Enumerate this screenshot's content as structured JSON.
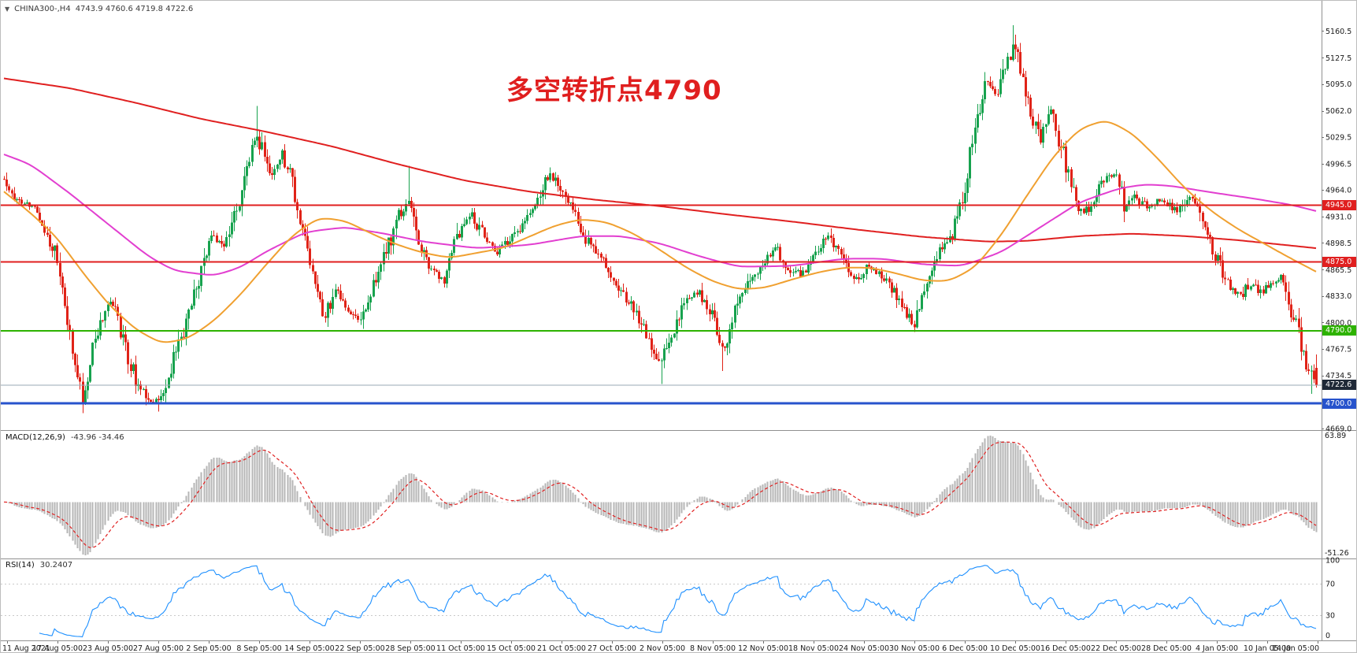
{
  "header": {
    "dropdown_glyph": "▼",
    "symbol": "CHINA300-,H4",
    "ohlc": "4743.9 4760.6 4719.8 4722.6"
  },
  "annotation": {
    "text": "多空转折点4790",
    "color": "#e01f1f"
  },
  "price_axis": {
    "ticks": [
      "5160.5",
      "5127.5",
      "5095.0",
      "5062.0",
      "5029.5",
      "4996.5",
      "4964.0",
      "4931.0",
      "4898.5",
      "4865.5",
      "4833.0",
      "4800.0",
      "4767.5",
      "4734.5",
      "4669.0"
    ]
  },
  "time_axis": {
    "labels": [
      "11 Aug 2021",
      "17 Aug 05:00",
      "23 Aug 05:00",
      "27 Aug 05:00",
      "2 Sep 05:00",
      "8 Sep 05:00",
      "14 Sep 05:00",
      "22 Sep 05:00",
      "28 Sep 05:00",
      "11 Oct 05:00",
      "15 Oct 05:00",
      "21 Oct 05:00",
      "27 Oct 05:00",
      "2 Nov 05:00",
      "8 Nov 05:00",
      "12 Nov 05:00",
      "18 Nov 05:00",
      "24 Nov 05:00",
      "30 Nov 05:00",
      "6 Dec 05:00",
      "10 Dec 05:00",
      "16 Dec 05:00",
      "22 Dec 05:00",
      "28 Dec 05:00",
      "4 Jan 05:00",
      "10 Jan 05:00",
      "14 Jan 05:00"
    ]
  },
  "current_price": {
    "value": 4722.6,
    "label": "4722.6",
    "line_color": "#9aa8b6",
    "badge_color": "#1f2937"
  },
  "macd_panel": {
    "name": "MACD(12,26,9)",
    "values_text": "-43.96 -34.46",
    "axis_max": "63.89",
    "axis_min": "-51.26",
    "signal_color": "#e02020"
  },
  "rsi_panel": {
    "name": "RSI(14)",
    "value_text": "30.2407",
    "levels": [
      "100",
      "70",
      "30",
      "0"
    ],
    "level_lines": [
      70,
      30
    ],
    "line_color": "#1e90ff"
  },
  "colors": {
    "bull": "#17a24e",
    "bear": "#e02318",
    "axis_text": "#1a1a1a",
    "separator": "#909090",
    "histogram": "#b6b6b6",
    "level_dash": "#c9c9c9"
  },
  "chart_data": {
    "type": "candlestick",
    "symbol": "CHINA300-",
    "timeframe": "H4",
    "title_annotation": "多空转折点4790",
    "ohlc_current": {
      "open": 4743.9,
      "high": 4760.6,
      "low": 4719.8,
      "close": 4722.6
    },
    "ylim": [
      4667,
      5198
    ],
    "x_range": [
      "11 Aug 2021",
      "14 Jan 05:00"
    ],
    "candles_count": 520,
    "price_path": [
      [
        0.0,
        4978
      ],
      [
        0.008,
        4952
      ],
      [
        0.018,
        4948
      ],
      [
        0.028,
        4930
      ],
      [
        0.04,
        4880
      ],
      [
        0.048,
        4800
      ],
      [
        0.056,
        4730
      ],
      [
        0.06,
        4700
      ],
      [
        0.066,
        4760
      ],
      [
        0.074,
        4806
      ],
      [
        0.082,
        4828
      ],
      [
        0.09,
        4780
      ],
      [
        0.1,
        4730
      ],
      [
        0.11,
        4706
      ],
      [
        0.118,
        4700
      ],
      [
        0.126,
        4740
      ],
      [
        0.136,
        4788
      ],
      [
        0.148,
        4852
      ],
      [
        0.158,
        4908
      ],
      [
        0.168,
        4890
      ],
      [
        0.178,
        4945
      ],
      [
        0.186,
        4995
      ],
      [
        0.192,
        5040
      ],
      [
        0.198,
        5005
      ],
      [
        0.205,
        4982
      ],
      [
        0.212,
        5012
      ],
      [
        0.22,
        4970
      ],
      [
        0.228,
        4905
      ],
      [
        0.236,
        4852
      ],
      [
        0.244,
        4808
      ],
      [
        0.252,
        4840
      ],
      [
        0.26,
        4822
      ],
      [
        0.27,
        4800
      ],
      [
        0.28,
        4838
      ],
      [
        0.29,
        4882
      ],
      [
        0.3,
        4930
      ],
      [
        0.308,
        4948
      ],
      [
        0.316,
        4900
      ],
      [
        0.326,
        4862
      ],
      [
        0.336,
        4852
      ],
      [
        0.346,
        4912
      ],
      [
        0.356,
        4934
      ],
      [
        0.366,
        4905
      ],
      [
        0.376,
        4888
      ],
      [
        0.386,
        4902
      ],
      [
        0.396,
        4926
      ],
      [
        0.406,
        4946
      ],
      [
        0.416,
        4986
      ],
      [
        0.424,
        4968
      ],
      [
        0.434,
        4940
      ],
      [
        0.444,
        4902
      ],
      [
        0.454,
        4880
      ],
      [
        0.462,
        4862
      ],
      [
        0.472,
        4836
      ],
      [
        0.482,
        4808
      ],
      [
        0.492,
        4775
      ],
      [
        0.5,
        4750
      ],
      [
        0.51,
        4792
      ],
      [
        0.52,
        4830
      ],
      [
        0.53,
        4838
      ],
      [
        0.54,
        4806
      ],
      [
        0.548,
        4766
      ],
      [
        0.558,
        4816
      ],
      [
        0.568,
        4850
      ],
      [
        0.578,
        4870
      ],
      [
        0.588,
        4892
      ],
      [
        0.598,
        4868
      ],
      [
        0.608,
        4858
      ],
      [
        0.618,
        4886
      ],
      [
        0.628,
        4906
      ],
      [
        0.638,
        4880
      ],
      [
        0.648,
        4852
      ],
      [
        0.658,
        4868
      ],
      [
        0.668,
        4858
      ],
      [
        0.678,
        4838
      ],
      [
        0.688,
        4808
      ],
      [
        0.694,
        4798
      ],
      [
        0.702,
        4852
      ],
      [
        0.712,
        4886
      ],
      [
        0.722,
        4906
      ],
      [
        0.731,
        4958
      ],
      [
        0.74,
        5045
      ],
      [
        0.748,
        5098
      ],
      [
        0.756,
        5076
      ],
      [
        0.762,
        5108
      ],
      [
        0.769,
        5148
      ],
      [
        0.776,
        5105
      ],
      [
        0.782,
        5062
      ],
      [
        0.79,
        5030
      ],
      [
        0.798,
        5058
      ],
      [
        0.806,
        5015
      ],
      [
        0.814,
        4968
      ],
      [
        0.822,
        4932
      ],
      [
        0.83,
        4950
      ],
      [
        0.838,
        4975
      ],
      [
        0.846,
        4988
      ],
      [
        0.854,
        4945
      ],
      [
        0.862,
        4958
      ],
      [
        0.87,
        4942
      ],
      [
        0.878,
        4952
      ],
      [
        0.886,
        4948
      ],
      [
        0.894,
        4938
      ],
      [
        0.902,
        4955
      ],
      [
        0.91,
        4942
      ],
      [
        0.918,
        4905
      ],
      [
        0.926,
        4872
      ],
      [
        0.934,
        4845
      ],
      [
        0.942,
        4832
      ],
      [
        0.95,
        4852
      ],
      [
        0.958,
        4838
      ],
      [
        0.966,
        4848
      ],
      [
        0.974,
        4856
      ],
      [
        0.98,
        4820
      ],
      [
        0.986,
        4788
      ],
      [
        0.992,
        4752
      ],
      [
        1.0,
        4723
      ]
    ],
    "spikes": [
      {
        "f": 0.06,
        "type": "low",
        "price": 4688
      },
      {
        "f": 0.118,
        "type": "low",
        "price": 4690
      },
      {
        "f": 0.192,
        "type": "high",
        "price": 5068
      },
      {
        "f": 0.308,
        "type": "high",
        "price": 4994
      },
      {
        "f": 0.5,
        "type": "low",
        "price": 4724
      },
      {
        "f": 0.548,
        "type": "low",
        "price": 4740
      },
      {
        "f": 0.769,
        "type": "high",
        "price": 5168
      },
      {
        "f": 0.996,
        "type": "low",
        "price": 4712
      }
    ],
    "moving_averages": [
      {
        "name": "ma-slow-line",
        "color": "#e02020",
        "width": 2,
        "path": [
          [
            0.0,
            5102
          ],
          [
            0.05,
            5090
          ],
          [
            0.1,
            5072
          ],
          [
            0.15,
            5052
          ],
          [
            0.2,
            5036
          ],
          [
            0.25,
            5018
          ],
          [
            0.3,
            4996
          ],
          [
            0.35,
            4976
          ],
          [
            0.4,
            4962
          ],
          [
            0.45,
            4952
          ],
          [
            0.5,
            4944
          ],
          [
            0.55,
            4934
          ],
          [
            0.6,
            4925
          ],
          [
            0.65,
            4915
          ],
          [
            0.7,
            4906
          ],
          [
            0.75,
            4900
          ],
          [
            0.78,
            4901
          ],
          [
            0.82,
            4907
          ],
          [
            0.86,
            4910
          ],
          [
            0.9,
            4907
          ],
          [
            0.94,
            4902
          ],
          [
            0.97,
            4897
          ],
          [
            1.0,
            4892
          ]
        ]
      },
      {
        "name": "ma-mid-line",
        "color": "#e23fd0",
        "width": 2,
        "path": [
          [
            0.0,
            5008
          ],
          [
            0.02,
            4996
          ],
          [
            0.05,
            4960
          ],
          [
            0.08,
            4921
          ],
          [
            0.11,
            4882
          ],
          [
            0.13,
            4864
          ],
          [
            0.16,
            4858
          ],
          [
            0.18,
            4868
          ],
          [
            0.2,
            4888
          ],
          [
            0.23,
            4912
          ],
          [
            0.26,
            4918
          ],
          [
            0.29,
            4910
          ],
          [
            0.32,
            4900
          ],
          [
            0.36,
            4892
          ],
          [
            0.4,
            4896
          ],
          [
            0.44,
            4907
          ],
          [
            0.47,
            4907
          ],
          [
            0.5,
            4898
          ],
          [
            0.53,
            4882
          ],
          [
            0.56,
            4869
          ],
          [
            0.6,
            4870
          ],
          [
            0.64,
            4879
          ],
          [
            0.67,
            4879
          ],
          [
            0.7,
            4872
          ],
          [
            0.73,
            4870
          ],
          [
            0.76,
            4887
          ],
          [
            0.79,
            4918
          ],
          [
            0.82,
            4949
          ],
          [
            0.85,
            4966
          ],
          [
            0.87,
            4971
          ],
          [
            0.89,
            4969
          ],
          [
            0.92,
            4961
          ],
          [
            0.95,
            4954
          ],
          [
            0.98,
            4946
          ],
          [
            1.0,
            4938
          ]
        ]
      },
      {
        "name": "ma-fast-line",
        "color": "#f0a030",
        "width": 2,
        "path": [
          [
            0.0,
            4962
          ],
          [
            0.02,
            4936
          ],
          [
            0.04,
            4906
          ],
          [
            0.06,
            4862
          ],
          [
            0.08,
            4822
          ],
          [
            0.1,
            4792
          ],
          [
            0.12,
            4774
          ],
          [
            0.14,
            4780
          ],
          [
            0.16,
            4802
          ],
          [
            0.18,
            4834
          ],
          [
            0.2,
            4872
          ],
          [
            0.22,
            4908
          ],
          [
            0.24,
            4930
          ],
          [
            0.26,
            4926
          ],
          [
            0.28,
            4910
          ],
          [
            0.3,
            4896
          ],
          [
            0.32,
            4886
          ],
          [
            0.34,
            4880
          ],
          [
            0.36,
            4886
          ],
          [
            0.38,
            4892
          ],
          [
            0.4,
            4906
          ],
          [
            0.42,
            4920
          ],
          [
            0.44,
            4928
          ],
          [
            0.46,
            4924
          ],
          [
            0.48,
            4910
          ],
          [
            0.5,
            4890
          ],
          [
            0.52,
            4868
          ],
          [
            0.54,
            4851
          ],
          [
            0.56,
            4841
          ],
          [
            0.58,
            4843
          ],
          [
            0.6,
            4853
          ],
          [
            0.62,
            4862
          ],
          [
            0.64,
            4868
          ],
          [
            0.66,
            4868
          ],
          [
            0.68,
            4861
          ],
          [
            0.7,
            4852
          ],
          [
            0.72,
            4851
          ],
          [
            0.74,
            4868
          ],
          [
            0.76,
            4908
          ],
          [
            0.78,
            4958
          ],
          [
            0.8,
            5006
          ],
          [
            0.82,
            5040
          ],
          [
            0.84,
            5051
          ],
          [
            0.86,
            5034
          ],
          [
            0.88,
            5002
          ],
          [
            0.9,
            4966
          ],
          [
            0.92,
            4938
          ],
          [
            0.94,
            4916
          ],
          [
            0.96,
            4898
          ],
          [
            0.98,
            4880
          ],
          [
            1.0,
            4863
          ]
        ]
      }
    ],
    "horizontal_lines": [
      {
        "price": 4945.0,
        "label": "4945.0",
        "color": "#e01f1f",
        "width": 2
      },
      {
        "price": 4875.0,
        "label": "4875.0",
        "color": "#e01f1f",
        "width": 2
      },
      {
        "price": 4790.0,
        "label": "4790.0",
        "color": "#2db200",
        "width": 2
      },
      {
        "price": 4700.0,
        "label": "4700.0",
        "color": "#2753cc",
        "width": 3
      }
    ],
    "indicators": [
      {
        "name": "MACD(12,26,9)",
        "last_values": [
          -43.96,
          -34.46
        ],
        "axis": [
          63.89,
          -51.26
        ]
      },
      {
        "name": "RSI(14)",
        "last_value": 30.2407,
        "axis": [
          100,
          70,
          30,
          0
        ]
      }
    ]
  }
}
